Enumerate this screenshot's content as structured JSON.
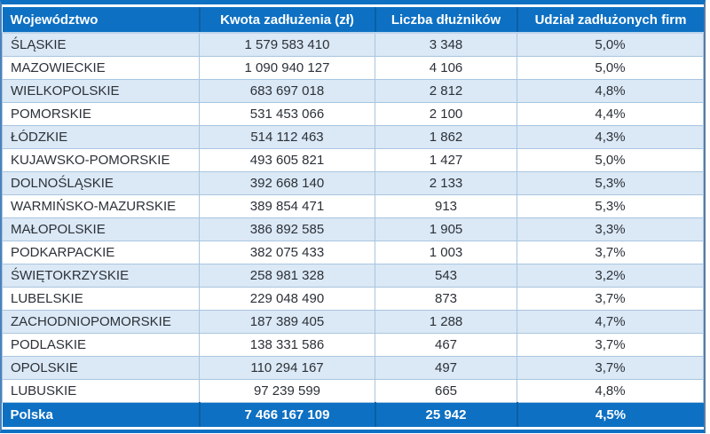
{
  "table": {
    "columns": [
      "Województwo",
      "Kwota zadłużenia (zł)",
      "Liczba dłużników",
      "Udział zadłużonych firm"
    ],
    "rows": [
      [
        "ŚLĄSKIE",
        "1 579 583 410",
        "3 348",
        "5,0%"
      ],
      [
        "MAZOWIECKIE",
        "1 090 940 127",
        "4 106",
        "5,0%"
      ],
      [
        "WIELKOPOLSKIE",
        "683 697 018",
        "2 812",
        "4,8%"
      ],
      [
        "POMORSKIE",
        "531 453 066",
        "2 100",
        "4,4%"
      ],
      [
        "ŁÓDZKIE",
        "514 112 463",
        "1 862",
        "4,3%"
      ],
      [
        "KUJAWSKO-POMORSKIE",
        "493 605 821",
        "1 427",
        "5,0%"
      ],
      [
        "DOLNOŚLĄSKIE",
        "392 668 140",
        "2 133",
        "5,3%"
      ],
      [
        "WARMIŃSKO-MAZURSKIE",
        "389 854 471",
        "913",
        "5,3%"
      ],
      [
        "MAŁOPOLSKIE",
        "386 892 585",
        "1 905",
        "3,3%"
      ],
      [
        "PODKARPACKIE",
        "382 075 433",
        "1 003",
        "3,7%"
      ],
      [
        "ŚWIĘTOKRZYSKIE",
        "258 981 328",
        "543",
        "3,2%"
      ],
      [
        "LUBELSKIE",
        "229 048 490",
        "873",
        "3,7%"
      ],
      [
        "ZACHODNIOPOMORSKIE",
        "187 389 405",
        "1 288",
        "4,7%"
      ],
      [
        "PODLASKIE",
        "138 331 586",
        "467",
        "3,7%"
      ],
      [
        "OPOLSKIE",
        "110 294 167",
        "497",
        "3,7%"
      ],
      [
        "LUBUSKIE",
        "97 239 599",
        "665",
        "4,8%"
      ]
    ],
    "total_row": [
      "Polska",
      "7 466 167 109",
      "25 942",
      "4,5%"
    ]
  },
  "colors": {
    "header_bg": "#0d70c3",
    "header_divider": "#0b5fa6",
    "total_bg": "#0d70c3",
    "stripe_bg": "#dbe8f5",
    "grid_border": "#a8c6e0",
    "outer_border": "#0d70c3",
    "header_text": "#ffffff",
    "body_text": "#2b3138"
  },
  "chart_data": {
    "type": "table",
    "title": "",
    "columns": [
      "Województwo",
      "Kwota zadłużenia (zł)",
      "Liczba dłużników",
      "Udział zadłużonych firm"
    ],
    "rows": [
      [
        "ŚLĄSKIE",
        1579583410,
        3348,
        "5,0%"
      ],
      [
        "MAZOWIECKIE",
        1090940127,
        4106,
        "5,0%"
      ],
      [
        "WIELKOPOLSKIE",
        683697018,
        2812,
        "4,8%"
      ],
      [
        "POMORSKIE",
        531453066,
        2100,
        "4,4%"
      ],
      [
        "ŁÓDZKIE",
        514112463,
        1862,
        "4,3%"
      ],
      [
        "KUJAWSKO-POMORSKIE",
        493605821,
        1427,
        "5,0%"
      ],
      [
        "DOLNOŚLĄSKIE",
        392668140,
        2133,
        "5,3%"
      ],
      [
        "WARMIŃSKO-MAZURSKIE",
        389854471,
        913,
        "5,3%"
      ],
      [
        "MAŁOPOLSKIE",
        386892585,
        1905,
        "3,3%"
      ],
      [
        "PODKARPACKIE",
        382075433,
        1003,
        "3,7%"
      ],
      [
        "ŚWIĘTOKRZYSKIE",
        258981328,
        543,
        "3,2%"
      ],
      [
        "LUBELSKIE",
        229048490,
        873,
        "3,7%"
      ],
      [
        "ZACHODNIOPOMORSKIE",
        187389405,
        1288,
        "4,7%"
      ],
      [
        "PODLASKIE",
        138331586,
        467,
        "3,7%"
      ],
      [
        "OPOLSKIE",
        110294167,
        497,
        "3,7%"
      ],
      [
        "LUBUSKIE",
        97239599,
        665,
        "4,8%"
      ]
    ],
    "total_row": [
      "Polska",
      7466167109,
      25942,
      "4,5%"
    ]
  }
}
